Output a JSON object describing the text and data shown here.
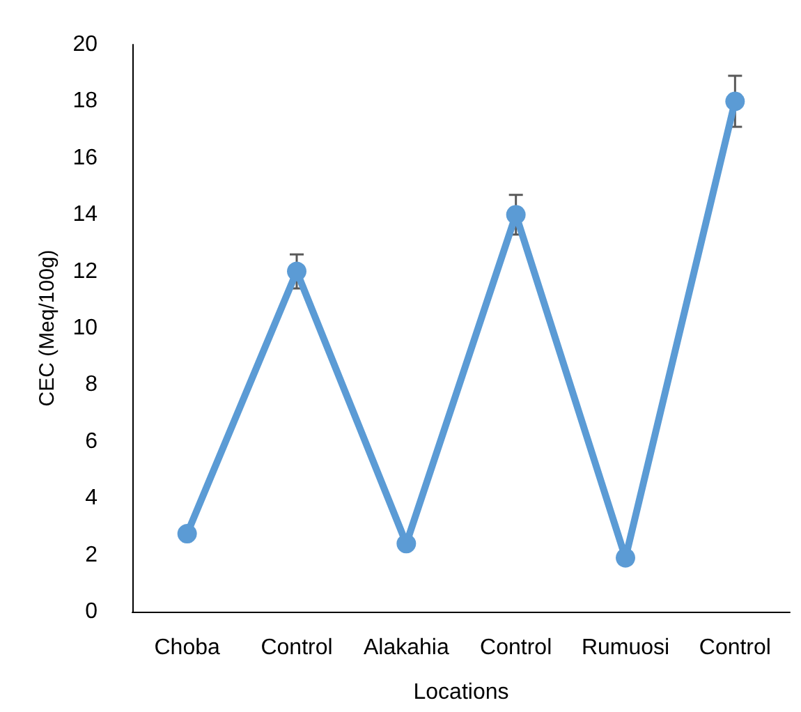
{
  "chart_data": {
    "type": "line",
    "xlabel": "Locations",
    "ylabel": "CEC (Meq/100g)",
    "categories": [
      "Choba",
      "Control",
      "Alakahia",
      "Control",
      "Rumuosi",
      "Control"
    ],
    "series": [
      {
        "color": "#5b9bd5",
        "values": [
          2.75,
          12,
          2.4,
          14,
          1.9,
          18
        ],
        "errors": [
          null,
          0.6,
          null,
          0.7,
          null,
          0.9
        ]
      }
    ],
    "ylim": [
      0,
      20
    ],
    "yticks": [
      0,
      2,
      4,
      6,
      8,
      10,
      12,
      14,
      16,
      18,
      20
    ],
    "grid": false,
    "marker": "circle",
    "line_style": "solid"
  }
}
